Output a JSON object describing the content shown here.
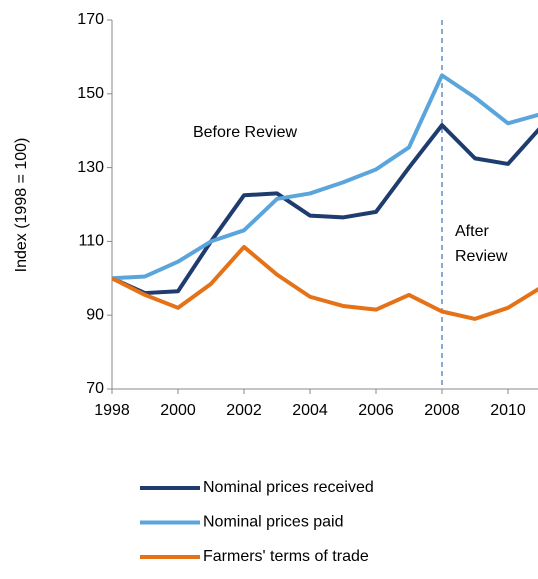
{
  "chart_data": {
    "type": "line",
    "y_label": "Index (1998 = 100)",
    "annotations": {
      "before": "Before Review",
      "after": [
        "After",
        "Review"
      ]
    },
    "vline": 2008,
    "x": [
      1998,
      1999,
      2000,
      2001,
      2002,
      2003,
      2004,
      2005,
      2006,
      2007,
      2008,
      2009,
      2010,
      2011
    ],
    "series": [
      {
        "name": "Nominal prices received",
        "color": "#1f3c6e",
        "values": [
          100,
          96,
          96.5,
          110,
          122.5,
          123,
          117,
          116.5,
          118,
          130,
          141.5,
          132.5,
          131,
          141
        ]
      },
      {
        "name": "Nominal prices paid",
        "color": "#5aa5dc",
        "values": [
          100,
          100.5,
          104.5,
          110,
          113,
          121.5,
          123,
          126,
          129.5,
          135.5,
          155,
          149,
          142,
          144.5
        ]
      },
      {
        "name": "Farmers' terms of trade",
        "color": "#e57217",
        "values": [
          100,
          95.5,
          92,
          98.5,
          108.5,
          101,
          95,
          92.5,
          91.5,
          95.5,
          91,
          89,
          92,
          97.5
        ]
      }
    ],
    "xlim": [
      1998,
      2011
    ],
    "xticks": [
      1998,
      2000,
      2002,
      2004,
      2006,
      2008,
      2010
    ],
    "ylim": [
      70,
      170
    ],
    "yticks": [
      70,
      90,
      110,
      130,
      150,
      170
    ],
    "grid": false
  }
}
